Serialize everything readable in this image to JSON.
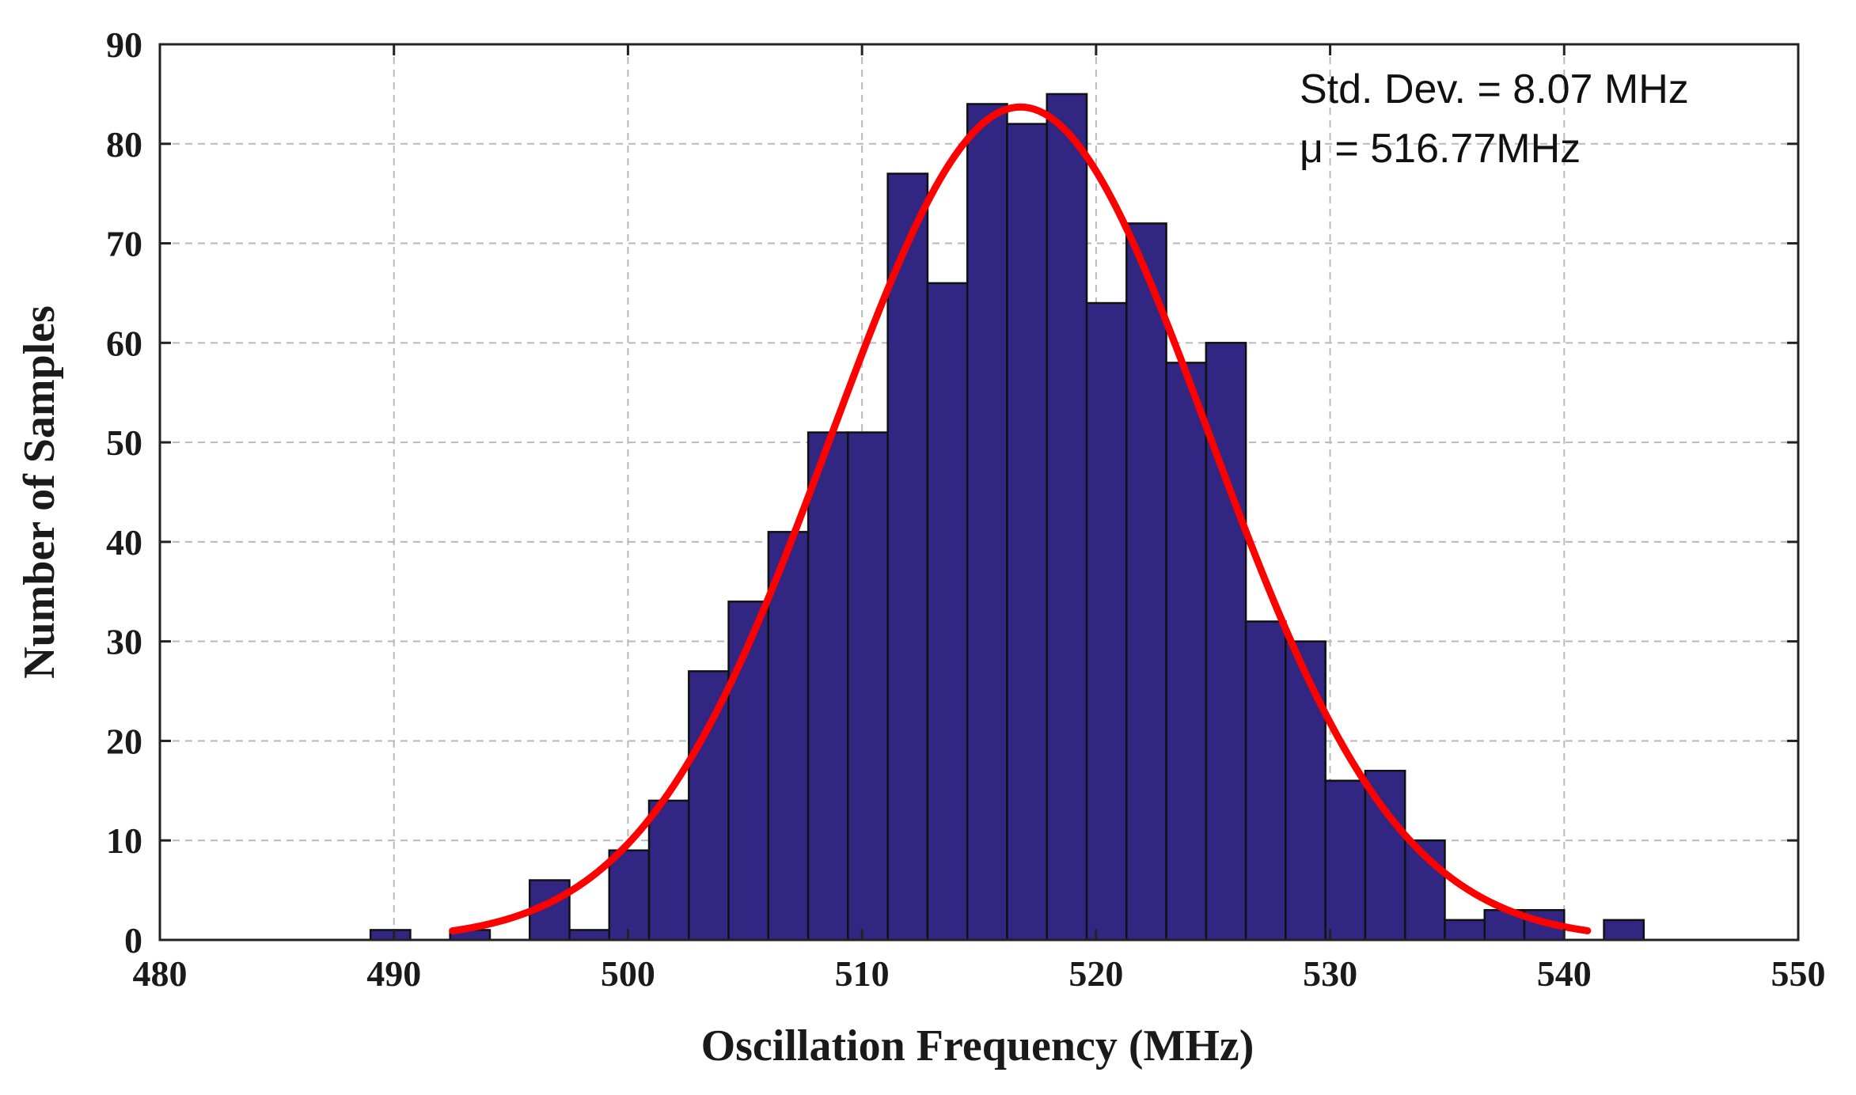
{
  "chart_data": {
    "type": "bar",
    "subtype": "histogram",
    "xlabel": "Oscillation Frequency (MHz)",
    "ylabel": "Number of Samples",
    "xlim": [
      480,
      550
    ],
    "ylim": [
      0,
      90
    ],
    "xticks": [
      "480",
      "490",
      "500",
      "510",
      "520",
      "530",
      "540",
      "550"
    ],
    "yticks": [
      "0",
      "10",
      "20",
      "30",
      "40",
      "50",
      "60",
      "70",
      "80",
      "90"
    ],
    "grid": true,
    "bin_edges": [
      489.0,
      490.7,
      492.4,
      494.1,
      495.8,
      497.5,
      499.2,
      500.9,
      502.6,
      504.3,
      506.0,
      507.7,
      509.4,
      511.1,
      512.8,
      514.5,
      516.2,
      517.9,
      519.6,
      521.3,
      523.0,
      524.7,
      526.4,
      528.1,
      529.8,
      531.5,
      533.2,
      534.9,
      536.6,
      538.3,
      540.0,
      541.7,
      543.4
    ],
    "counts": [
      1,
      0,
      1,
      0,
      6,
      1,
      9,
      14,
      27,
      34,
      41,
      51,
      51,
      77,
      66,
      84,
      82,
      85,
      64,
      72,
      58,
      60,
      32,
      30,
      16,
      17,
      10,
      2,
      3,
      3,
      0,
      2
    ],
    "bar_color": "#312782",
    "fit_curve": {
      "type": "normal",
      "mean": 516.77,
      "std": 8.07,
      "peak": 83.7,
      "x_range": [
        492.5,
        541.0
      ],
      "color": "#ff0000"
    },
    "annotations": [
      "Std. Dev. = 8.07 MHz",
      "μ = 516.77MHz"
    ]
  }
}
